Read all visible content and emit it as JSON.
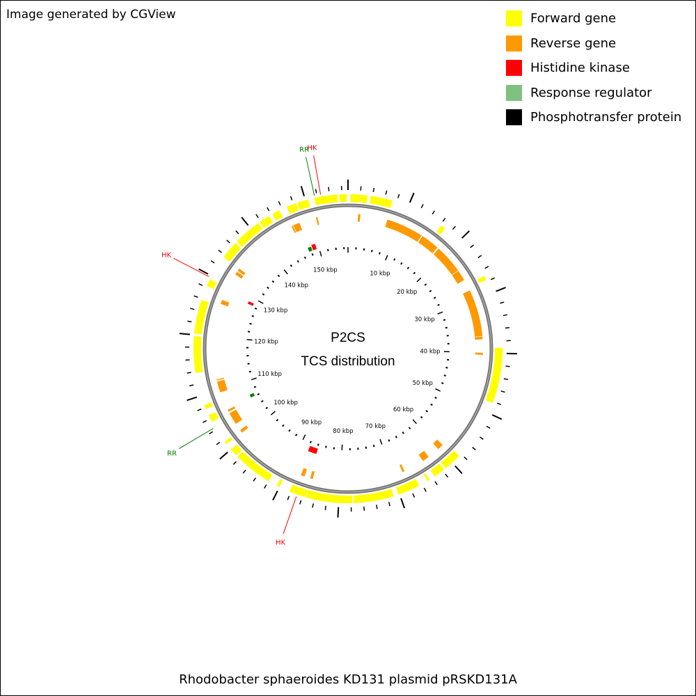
{
  "header": {
    "generator_text": "Image generated by CGView"
  },
  "legend": [
    {
      "label": "Forward gene",
      "color": "#ffff00"
    },
    {
      "label": "Reverse gene",
      "color": "#ff9900"
    },
    {
      "label": "Histidine kinase",
      "color": "#ff0000"
    },
    {
      "label": "Response regulator",
      "color": "#80c080"
    },
    {
      "label": "Phosphotransfer protein",
      "color": "#000000"
    }
  ],
  "map": {
    "center_title": "P2CS",
    "center_subtitle": "TCS distribution",
    "genome_length_kbp": 157,
    "tick_labels": [
      "10 kbp",
      "20 kbp",
      "30 kbp",
      "40 kbp",
      "50 kbp",
      "60 kbp",
      "70 kbp",
      "80 kbp",
      "90 kbp",
      "100 kbp",
      "110 kbp",
      "120 kbp",
      "130 kbp",
      "140 kbp",
      "150 kbp"
    ],
    "tracks": {
      "forward": {
        "color": "#ffff00",
        "segments_kbp": [
          [
            0.4,
            3.2
          ],
          [
            3.7,
            7.3
          ],
          [
            16.2,
            17.0
          ],
          [
            27.0,
            27.7
          ],
          [
            39.1,
            48.2
          ],
          [
            58.4,
            61.4
          ],
          [
            61.7,
            63.6
          ],
          [
            64.6,
            65.0
          ],
          [
            66.5,
            70.2
          ],
          [
            71.0,
            77.6
          ],
          [
            77.8,
            85.4
          ],
          [
            85.5,
            88.2
          ],
          [
            90.0,
            90.5
          ],
          [
            92.0,
            98.4
          ],
          [
            98.7,
            100.0
          ],
          [
            101.1,
            101.6
          ],
          [
            105.4,
            106.6
          ],
          [
            107.7,
            108.4
          ],
          [
            113.8,
            119.8
          ],
          [
            120.2,
            125.8
          ],
          [
            128.2,
            129.4
          ],
          [
            133.6,
            136.6
          ],
          [
            136.9,
            141.5
          ],
          [
            141.8,
            143.6
          ],
          [
            144.2,
            145.5
          ],
          [
            146.8,
            148.4
          ],
          [
            148.6,
            150.5
          ],
          [
            151.5,
            155.3
          ],
          [
            155.6,
            156.8
          ]
        ]
      },
      "reverse": {
        "color": "#ff9900",
        "segments_kbp": [
          [
            1.9,
            2.3
          ],
          [
            7.4,
            14.4
          ],
          [
            14.6,
            18.1
          ],
          [
            18.4,
            23.8
          ],
          [
            23.9,
            25.9
          ],
          [
            28.1,
            36.9
          ],
          [
            37.0,
            37.5
          ],
          [
            40.0,
            40.4
          ],
          [
            59.1,
            60.2
          ],
          [
            62.5,
            63.8
          ],
          [
            67.7,
            68.1
          ],
          [
            85.1,
            85.6
          ],
          [
            86.7,
            87.4
          ],
          [
            101.0,
            101.6
          ],
          [
            103.0,
            105.3
          ],
          [
            105.6,
            106.0
          ],
          [
            109.5,
            111.6
          ],
          [
            111.8,
            112.0
          ],
          [
            126.3,
            127.0
          ],
          [
            126.2,
            126.8
          ],
          [
            132.3,
            132.9
          ],
          [
            133.1,
            133.6
          ],
          [
            146.6,
            147.8
          ],
          [
            146.2,
            146.5
          ],
          [
            151.0,
            151.3
          ]
        ]
      },
      "histidine_kinase": {
        "color": "#ff0000",
        "segments_kbp": [
          [
            85.8,
            87.8
          ],
          [
            148.5,
            149.4
          ],
          [
            128.3,
            128.9
          ]
        ]
      },
      "response_regulator": {
        "color": "#008000",
        "segments_kbp": [
          [
            147.5,
            148.3
          ],
          [
            106.1,
            106.8
          ]
        ]
      }
    },
    "feature_labels": [
      {
        "text": "HK",
        "position_kbp": 152.6,
        "color": "#ff0000"
      },
      {
        "text": "RR",
        "position_kbp": 151.6,
        "color": "#008000"
      },
      {
        "text": "HK",
        "position_kbp": 129.7,
        "color": "#ff0000"
      },
      {
        "text": "RR",
        "position_kbp": 104.4,
        "color": "#008000"
      },
      {
        "text": "HK",
        "position_kbp": 86.9,
        "color": "#ff0000"
      }
    ]
  },
  "caption": "Rhodobacter sphaeroides KD131 plasmid pRSKD131A"
}
